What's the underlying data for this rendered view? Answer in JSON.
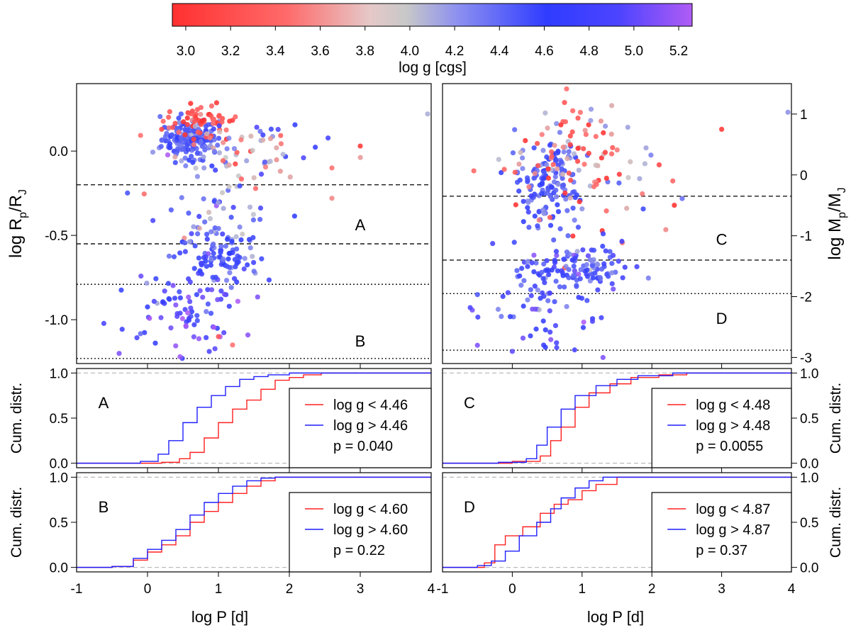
{
  "colorbar": {
    "label": "log g [cgs]",
    "ticks": [
      "3.0",
      "3.2",
      "3.4",
      "3.6",
      "3.8",
      "4.0",
      "4.2",
      "4.4",
      "4.6",
      "4.8",
      "5.0",
      "5.2"
    ],
    "range": [
      2.94,
      5.26
    ],
    "colors": {
      "low": "#ff3030",
      "mid": "#c8c8c8",
      "high_mid": "#2f3cff",
      "high": "#b05cf5"
    }
  },
  "chart_data": [
    {
      "id": "radius_scatter",
      "type": "scatter",
      "ylabel": "log Rp/RJ",
      "xlim": [
        -1,
        4
      ],
      "ylim": [
        -1.26,
        0.4
      ],
      "yticks": [
        "0.0",
        "-0.5",
        "-1.0"
      ],
      "region_labels": [
        {
          "text": "A",
          "x": 3.0,
          "y": -0.47
        },
        {
          "text": "B",
          "x": 3.0,
          "y": -1.16
        }
      ],
      "dashed_lines": [
        -0.2,
        -0.55
      ],
      "dotted_lines": [
        -0.79,
        -1.23
      ],
      "clusters": [
        {
          "x": 0.6,
          "y": 0.07,
          "sx": 0.2,
          "sy": 0.06,
          "n": 170,
          "g": [
            4.45,
            0.12
          ]
        },
        {
          "x": 0.75,
          "y": 0.17,
          "sx": 0.25,
          "sy": 0.05,
          "n": 60,
          "g": [
            3.2,
            0.2
          ]
        },
        {
          "x": 1.2,
          "y": 0.0,
          "sx": 0.55,
          "sy": 0.1,
          "n": 70,
          "g": [
            4.0,
            0.6
          ]
        },
        {
          "x": 1.0,
          "y": -0.35,
          "sx": 0.45,
          "sy": 0.1,
          "n": 45,
          "g": [
            4.35,
            0.35
          ]
        },
        {
          "x": 1.0,
          "y": -0.63,
          "sx": 0.3,
          "sy": 0.08,
          "n": 90,
          "g": [
            4.5,
            0.2
          ]
        },
        {
          "x": 0.5,
          "y": -0.88,
          "sx": 0.45,
          "sy": 0.12,
          "n": 70,
          "g": [
            4.8,
            0.25
          ]
        },
        {
          "x": 0.7,
          "y": -1.12,
          "sx": 0.35,
          "sy": 0.08,
          "n": 14,
          "g": [
            4.9,
            0.2
          ]
        }
      ],
      "points": [
        {
          "x": 3.95,
          "y": 0.22,
          "g": 4.05
        },
        {
          "x": 3.0,
          "y": 0.03,
          "g": 3.0
        },
        {
          "x": 2.6,
          "y": -0.1,
          "g": 3.5
        },
        {
          "x": 2.6,
          "y": -0.28,
          "g": 3.6
        },
        {
          "x": 2.2,
          "y": -0.04,
          "g": 4.9
        },
        {
          "x": -0.4,
          "y": -1.2,
          "g": 5.1
        },
        {
          "x": 1.2,
          "y": -1.15,
          "g": 3.5
        },
        {
          "x": 1.0,
          "y": -1.1,
          "g": 3.3
        }
      ]
    },
    {
      "id": "mass_scatter",
      "type": "scatter",
      "ylabel": "log Mp/MJ",
      "xlim": [
        -1,
        4
      ],
      "ylim": [
        -3.1,
        1.5
      ],
      "yticks": [
        "1",
        "0",
        "-1",
        "-2",
        "-3"
      ],
      "region_labels": [
        {
          "text": "C",
          "x": 3.0,
          "y": -1.15
        },
        {
          "text": "D",
          "x": 3.0,
          "y": -2.45
        }
      ],
      "dashed_lines": [
        -0.35,
        -1.4
      ],
      "dotted_lines": [
        -1.95,
        -2.88
      ],
      "clusters": [
        {
          "x": 0.5,
          "y": -0.1,
          "sx": 0.22,
          "sy": 0.35,
          "n": 140,
          "g": [
            4.45,
            0.15
          ]
        },
        {
          "x": 1.0,
          "y": 0.2,
          "sx": 0.55,
          "sy": 0.55,
          "n": 110,
          "g": [
            3.6,
            0.45
          ]
        },
        {
          "x": 1.0,
          "y": -1.55,
          "sx": 0.35,
          "sy": 0.2,
          "n": 100,
          "g": [
            4.5,
            0.25
          ]
        },
        {
          "x": 0.4,
          "y": -1.9,
          "sx": 0.4,
          "sy": 0.35,
          "n": 60,
          "g": [
            4.6,
            0.3
          ]
        },
        {
          "x": 0.6,
          "y": -2.5,
          "sx": 0.4,
          "sy": 0.25,
          "n": 18,
          "g": [
            4.9,
            0.2
          ]
        }
      ],
      "points": [
        {
          "x": 3.95,
          "y": 1.03,
          "g": 4.2
        },
        {
          "x": 3.0,
          "y": 0.75,
          "g": 3.0
        },
        {
          "x": 2.3,
          "y": -0.1,
          "g": 3.4
        },
        {
          "x": 2.2,
          "y": -0.9,
          "g": 3.6
        },
        {
          "x": 1.3,
          "y": -3.0,
          "g": 5.1
        },
        {
          "x": 0.0,
          "y": -2.9,
          "g": 5.0
        },
        {
          "x": -0.5,
          "y": -2.8,
          "g": 5.1
        }
      ]
    },
    {
      "id": "cdf_A",
      "type": "line",
      "label": "A",
      "ylabel": "Cum. distr.",
      "xlim": [
        -1,
        4
      ],
      "ylim": [
        -0.05,
        1.05
      ],
      "yticks": [
        "0.0",
        "0.5",
        "1.0"
      ],
      "p_text": "p =  0.040",
      "series": [
        {
          "name": "log g < 4.46",
          "color": "#ff2020",
          "points": [
            [
              -1,
              0
            ],
            [
              0.2,
              0.01
            ],
            [
              0.45,
              0.05
            ],
            [
              0.6,
              0.12
            ],
            [
              0.8,
              0.28
            ],
            [
              1.0,
              0.45
            ],
            [
              1.2,
              0.6
            ],
            [
              1.4,
              0.7
            ],
            [
              1.6,
              0.82
            ],
            [
              1.8,
              0.92
            ],
            [
              2.0,
              0.95
            ],
            [
              2.2,
              0.98
            ],
            [
              2.45,
              1.0
            ],
            [
              4,
              1.0
            ]
          ]
        },
        {
          "name": "log g > 4.46",
          "color": "#1f1fff",
          "points": [
            [
              -1,
              0
            ],
            [
              -0.1,
              0.02
            ],
            [
              0.15,
              0.1
            ],
            [
              0.3,
              0.25
            ],
            [
              0.5,
              0.45
            ],
            [
              0.7,
              0.62
            ],
            [
              0.9,
              0.75
            ],
            [
              1.1,
              0.85
            ],
            [
              1.3,
              0.93
            ],
            [
              1.5,
              0.96
            ],
            [
              1.7,
              0.98
            ],
            [
              2.0,
              1.0
            ],
            [
              4,
              1.0
            ]
          ]
        }
      ]
    },
    {
      "id": "cdf_C",
      "type": "line",
      "label": "C",
      "ylabel": "Cum. distr.",
      "xlim": [
        -1,
        4
      ],
      "ylim": [
        -0.05,
        1.05
      ],
      "yticks": [
        "0.0",
        "0.5",
        "1.0"
      ],
      "p_text": "p =  0.0055",
      "series": [
        {
          "name": "log g < 4.48",
          "color": "#ff2020",
          "points": [
            [
              -1,
              0
            ],
            [
              0.0,
              0.02
            ],
            [
              0.4,
              0.08
            ],
            [
              0.55,
              0.25
            ],
            [
              0.7,
              0.4
            ],
            [
              0.9,
              0.62
            ],
            [
              1.1,
              0.78
            ],
            [
              1.4,
              0.88
            ],
            [
              1.7,
              0.95
            ],
            [
              2.1,
              0.98
            ],
            [
              2.5,
              1.0
            ],
            [
              4,
              1.0
            ]
          ]
        },
        {
          "name": "log g > 4.48",
          "color": "#1f1fff",
          "points": [
            [
              -1,
              0
            ],
            [
              -0.2,
              0.01
            ],
            [
              0.2,
              0.05
            ],
            [
              0.35,
              0.2
            ],
            [
              0.5,
              0.4
            ],
            [
              0.7,
              0.6
            ],
            [
              0.9,
              0.75
            ],
            [
              1.2,
              0.86
            ],
            [
              1.5,
              0.93
            ],
            [
              1.8,
              0.97
            ],
            [
              2.3,
              1.0
            ],
            [
              4,
              1.0
            ]
          ]
        }
      ]
    },
    {
      "id": "cdf_B",
      "type": "line",
      "label": "B",
      "ylabel": "Cum. distr.",
      "xlim": [
        -1,
        4
      ],
      "ylim": [
        -0.05,
        1.05
      ],
      "yticks": [
        "0.0",
        "0.5",
        "1.0"
      ],
      "p_text": "p =  0.22",
      "series": [
        {
          "name": "log g < 4.60",
          "color": "#ff2020",
          "points": [
            [
              -1,
              0
            ],
            [
              -0.5,
              0.01
            ],
            [
              -0.2,
              0.08
            ],
            [
              0.0,
              0.17
            ],
            [
              0.2,
              0.25
            ],
            [
              0.4,
              0.35
            ],
            [
              0.6,
              0.5
            ],
            [
              0.8,
              0.62
            ],
            [
              1.0,
              0.72
            ],
            [
              1.2,
              0.82
            ],
            [
              1.4,
              0.9
            ],
            [
              1.6,
              0.96
            ],
            [
              1.8,
              1.0
            ],
            [
              4,
              1.0
            ]
          ]
        },
        {
          "name": "log g > 4.60",
          "color": "#1f1fff",
          "points": [
            [
              -1,
              0
            ],
            [
              -0.5,
              0.01
            ],
            [
              -0.2,
              0.1
            ],
            [
              0.0,
              0.2
            ],
            [
              0.2,
              0.3
            ],
            [
              0.4,
              0.42
            ],
            [
              0.6,
              0.58
            ],
            [
              0.8,
              0.72
            ],
            [
              1.0,
              0.82
            ],
            [
              1.2,
              0.9
            ],
            [
              1.4,
              0.96
            ],
            [
              1.6,
              0.99
            ],
            [
              1.8,
              1.0
            ],
            [
              4,
              1.0
            ]
          ]
        }
      ]
    },
    {
      "id": "cdf_D",
      "type": "line",
      "label": "D",
      "ylabel": "Cum. distr.",
      "xlim": [
        -1,
        4
      ],
      "ylim": [
        -0.05,
        1.05
      ],
      "yticks": [
        "0.0",
        "0.5",
        "1.0"
      ],
      "p_text": "p =  0.37",
      "series": [
        {
          "name": "log g < 4.87",
          "color": "#ff2020",
          "points": [
            [
              -1,
              0
            ],
            [
              -0.4,
              0.05
            ],
            [
              -0.25,
              0.25
            ],
            [
              -0.1,
              0.35
            ],
            [
              0.15,
              0.45
            ],
            [
              0.4,
              0.6
            ],
            [
              0.6,
              0.7
            ],
            [
              0.8,
              0.75
            ],
            [
              1.0,
              0.85
            ],
            [
              1.2,
              0.92
            ],
            [
              1.5,
              1.0
            ],
            [
              4,
              1.0
            ]
          ]
        },
        {
          "name": "log g > 4.87",
          "color": "#1f1fff",
          "points": [
            [
              -1,
              0
            ],
            [
              -0.5,
              0.02
            ],
            [
              -0.3,
              0.07
            ],
            [
              -0.1,
              0.18
            ],
            [
              0.1,
              0.35
            ],
            [
              0.35,
              0.5
            ],
            [
              0.55,
              0.65
            ],
            [
              0.7,
              0.77
            ],
            [
              0.9,
              0.88
            ],
            [
              1.1,
              0.96
            ],
            [
              1.3,
              1.0
            ],
            [
              4,
              1.0
            ]
          ]
        }
      ]
    }
  ],
  "x_axis": {
    "label": "log P [d]",
    "ticks_left": [
      "-1",
      "0",
      "1",
      "2",
      "3",
      "4"
    ],
    "ticks_right": [
      "-1",
      "0",
      "1",
      "2",
      "3",
      "4"
    ]
  }
}
